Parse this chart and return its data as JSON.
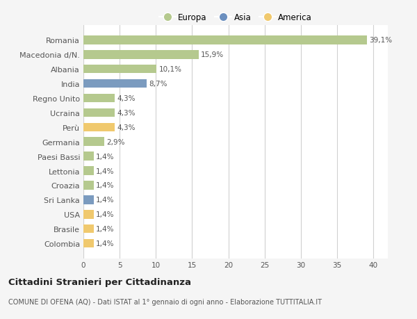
{
  "countries": [
    "Romania",
    "Macedonia d/N.",
    "Albania",
    "India",
    "Regno Unito",
    "Ucraina",
    "Perù",
    "Germania",
    "Paesi Bassi",
    "Lettonia",
    "Croazia",
    "Sri Lanka",
    "USA",
    "Brasile",
    "Colombia"
  ],
  "values": [
    39.1,
    15.9,
    10.1,
    8.7,
    4.3,
    4.3,
    4.3,
    2.9,
    1.4,
    1.4,
    1.4,
    1.4,
    1.4,
    1.4,
    1.4
  ],
  "labels": [
    "39,1%",
    "15,9%",
    "10,1%",
    "8,7%",
    "4,3%",
    "4,3%",
    "4,3%",
    "2,9%",
    "1,4%",
    "1,4%",
    "1,4%",
    "1,4%",
    "1,4%",
    "1,4%",
    "1,4%"
  ],
  "continents": [
    "Europa",
    "Europa",
    "Europa",
    "Asia",
    "Europa",
    "Europa",
    "America",
    "Europa",
    "Europa",
    "Europa",
    "Europa",
    "Asia",
    "America",
    "America",
    "America"
  ],
  "colors": {
    "Europa": "#b5c98e",
    "Asia": "#7b9bbf",
    "America": "#f0c96e"
  },
  "legend_colors": {
    "Europa": "#b5c98e",
    "Asia": "#6b8fbf",
    "America": "#f0c96e"
  },
  "title": "Cittadini Stranieri per Cittadinanza",
  "subtitle": "COMUNE DI OFENA (AQ) - Dati ISTAT al 1° gennaio di ogni anno - Elaborazione TUTTITALIA.IT",
  "xlim": [
    0,
    42
  ],
  "xticks": [
    0,
    5,
    10,
    15,
    20,
    25,
    30,
    35,
    40
  ],
  "background_color": "#f5f5f5",
  "bar_background": "#ffffff",
  "grid_color": "#d0d0d0"
}
